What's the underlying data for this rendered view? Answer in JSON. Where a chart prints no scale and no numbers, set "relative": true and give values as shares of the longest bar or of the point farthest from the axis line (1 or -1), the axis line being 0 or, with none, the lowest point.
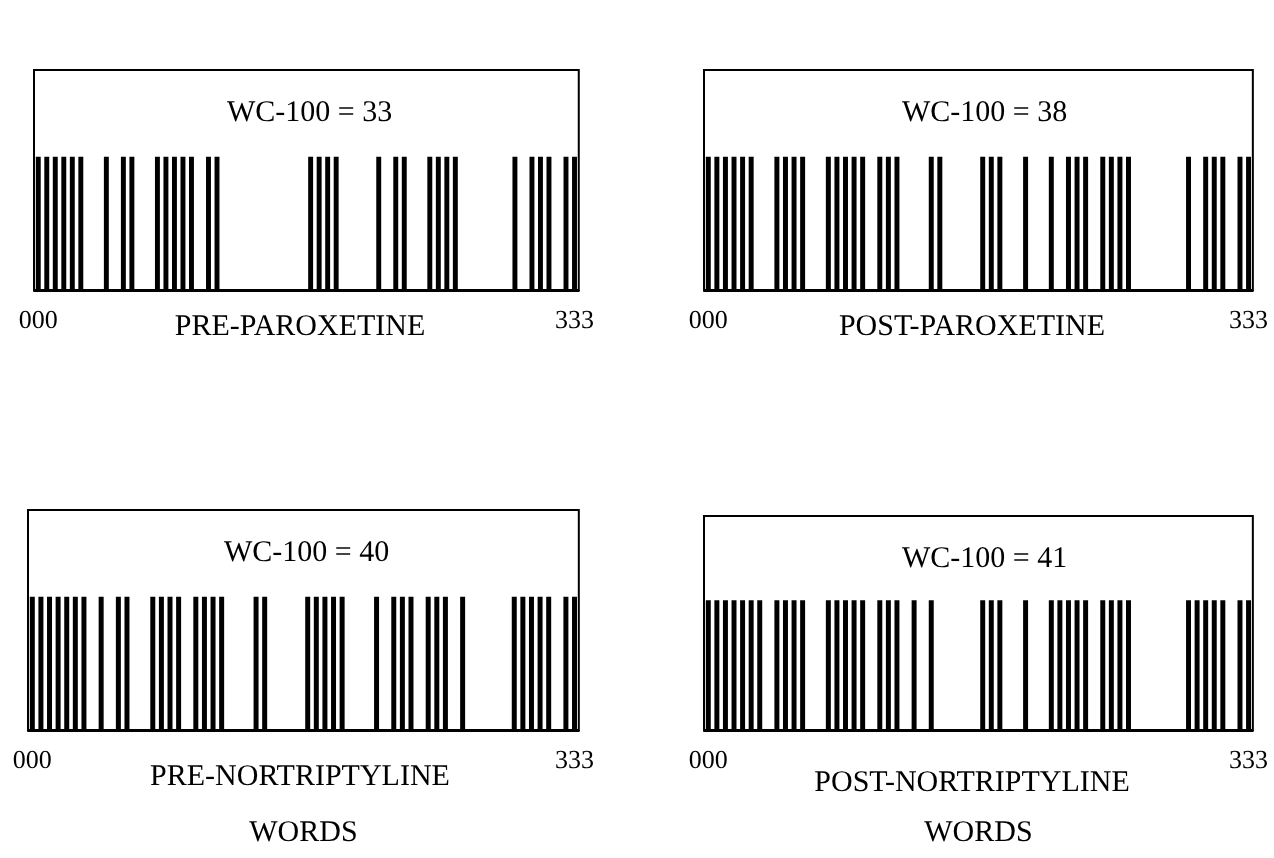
{
  "chart_data": [
    {
      "type": "bar",
      "relative": true,
      "title": "PRE-PAROXETINE",
      "annotations": [
        "WC-100 = 33"
      ],
      "color": "#000000",
      "categories": [
        "000",
        null,
        null,
        null,
        null,
        null,
        null,
        null,
        null,
        null,
        null,
        null,
        null,
        null,
        null,
        null,
        null,
        null,
        null,
        null,
        null,
        null,
        null,
        null,
        null,
        null,
        null,
        null,
        null,
        null,
        null,
        null,
        null,
        null,
        null,
        null,
        null,
        null,
        null,
        null,
        null,
        null,
        null,
        null,
        null,
        null,
        null,
        null,
        null,
        null,
        null,
        null,
        null,
        null,
        null,
        null,
        null,
        null,
        null,
        null,
        null,
        null,
        null,
        "333"
      ],
      "values": [
        1,
        1,
        1,
        1,
        1,
        1,
        0,
        0,
        1,
        0,
        1,
        1,
        0,
        0,
        1,
        1,
        1,
        1,
        1,
        0,
        1,
        1,
        0,
        0,
        0,
        0,
        0,
        0,
        0,
        0,
        0,
        0,
        1,
        1,
        1,
        1,
        0,
        0,
        0,
        0,
        1,
        0,
        1,
        1,
        0,
        0,
        1,
        1,
        1,
        1,
        0,
        0,
        0,
        0,
        0,
        0,
        1,
        0,
        1,
        1,
        1,
        0,
        1,
        1
      ]
    },
    {
      "type": "bar",
      "relative": true,
      "title": "POST-PAROXETINE",
      "annotations": [
        "WC-100 = 38"
      ],
      "color": "#000000",
      "categories": [
        "000",
        null,
        null,
        null,
        null,
        null,
        null,
        null,
        null,
        null,
        null,
        null,
        null,
        null,
        null,
        null,
        null,
        null,
        null,
        null,
        null,
        null,
        null,
        null,
        null,
        null,
        null,
        null,
        null,
        null,
        null,
        null,
        null,
        null,
        null,
        null,
        null,
        null,
        null,
        null,
        null,
        null,
        null,
        null,
        null,
        null,
        null,
        null,
        null,
        null,
        null,
        null,
        null,
        null,
        null,
        null,
        null,
        null,
        null,
        null,
        null,
        null,
        null,
        "333"
      ],
      "values": [
        1,
        1,
        1,
        1,
        1,
        1,
        0,
        0,
        1,
        1,
        1,
        1,
        0,
        0,
        1,
        1,
        1,
        1,
        1,
        0,
        1,
        1,
        1,
        0,
        0,
        0,
        1,
        1,
        0,
        0,
        0,
        0,
        1,
        1,
        1,
        0,
        0,
        1,
        0,
        0,
        1,
        0,
        1,
        1,
        1,
        0,
        1,
        1,
        1,
        1,
        0,
        0,
        0,
        0,
        0,
        0,
        1,
        0,
        1,
        1,
        1,
        0,
        1,
        1
      ]
    },
    {
      "type": "bar",
      "relative": true,
      "title": "PRE-NORTRIPTYLINE",
      "xlabel": "WORDS",
      "annotations": [
        "WC-100 = 40"
      ],
      "color": "#000000",
      "categories": [
        "000",
        null,
        null,
        null,
        null,
        null,
        null,
        null,
        null,
        null,
        null,
        null,
        null,
        null,
        null,
        null,
        null,
        null,
        null,
        null,
        null,
        null,
        null,
        null,
        null,
        null,
        null,
        null,
        null,
        null,
        null,
        null,
        null,
        null,
        null,
        null,
        null,
        null,
        null,
        null,
        null,
        null,
        null,
        null,
        null,
        null,
        null,
        null,
        null,
        null,
        null,
        null,
        null,
        null,
        null,
        null,
        null,
        null,
        null,
        null,
        null,
        null,
        null,
        "333"
      ],
      "values": [
        1,
        1,
        1,
        1,
        1,
        1,
        1,
        0,
        1,
        0,
        1,
        1,
        0,
        0,
        1,
        1,
        1,
        1,
        0,
        1,
        1,
        1,
        1,
        0,
        0,
        0,
        1,
        1,
        0,
        0,
        0,
        0,
        1,
        1,
        1,
        1,
        1,
        0,
        0,
        0,
        1,
        0,
        1,
        1,
        1,
        0,
        1,
        1,
        1,
        0,
        1,
        0,
        0,
        0,
        0,
        0,
        1,
        1,
        1,
        1,
        1,
        0,
        1,
        1
      ]
    },
    {
      "type": "bar",
      "relative": true,
      "title": "POST-NORTRIPTYLINE",
      "xlabel": "WORDS",
      "annotations": [
        "WC-100 = 41"
      ],
      "color": "#000000",
      "categories": [
        "000",
        null,
        null,
        null,
        null,
        null,
        null,
        null,
        null,
        null,
        null,
        null,
        null,
        null,
        null,
        null,
        null,
        null,
        null,
        null,
        null,
        null,
        null,
        null,
        null,
        null,
        null,
        null,
        null,
        null,
        null,
        null,
        null,
        null,
        null,
        null,
        null,
        null,
        null,
        null,
        null,
        null,
        null,
        null,
        null,
        null,
        null,
        null,
        null,
        null,
        null,
        null,
        null,
        null,
        null,
        null,
        null,
        null,
        null,
        null,
        null,
        null,
        null,
        "333"
      ],
      "values": [
        1,
        1,
        1,
        1,
        1,
        1,
        1,
        0,
        1,
        1,
        1,
        1,
        0,
        0,
        1,
        1,
        1,
        1,
        1,
        0,
        1,
        1,
        1,
        0,
        1,
        0,
        1,
        0,
        0,
        0,
        0,
        0,
        1,
        1,
        1,
        0,
        0,
        1,
        0,
        0,
        1,
        1,
        1,
        1,
        1,
        0,
        1,
        1,
        1,
        1,
        0,
        0,
        0,
        0,
        0,
        0,
        1,
        1,
        1,
        1,
        1,
        0,
        1,
        1
      ]
    }
  ]
}
